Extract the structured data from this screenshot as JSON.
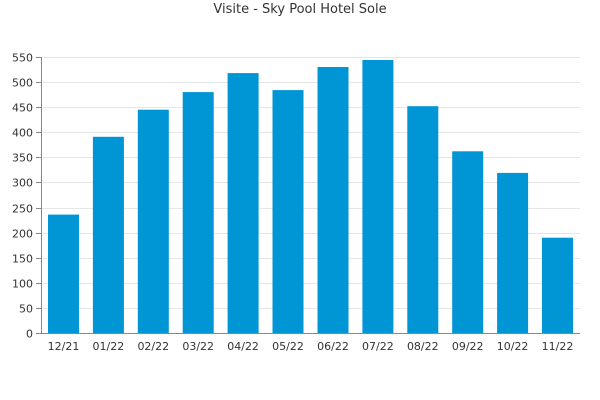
{
  "chart_data": {
    "type": "bar",
    "title": "Visite - Sky Pool Hotel Sole",
    "xlabel": "",
    "ylabel": "",
    "categories": [
      "12/21",
      "01/22",
      "02/22",
      "03/22",
      "04/22",
      "05/22",
      "06/22",
      "07/22",
      "08/22",
      "09/22",
      "10/22",
      "11/22"
    ],
    "series": [
      {
        "values": [
          236,
          391,
          445,
          480,
          518,
          484,
          530,
          544,
          452,
          362,
          319,
          190
        ]
      }
    ],
    "ylim": [
      0,
      550
    ],
    "yticks": [
      0,
      50,
      100,
      150,
      200,
      250,
      300,
      350,
      400,
      450,
      500,
      550
    ],
    "grid": true,
    "legend": "none",
    "bar_color": "#0095d4",
    "grid_color": "#e6e6e6",
    "axis_color": "#888888"
  }
}
